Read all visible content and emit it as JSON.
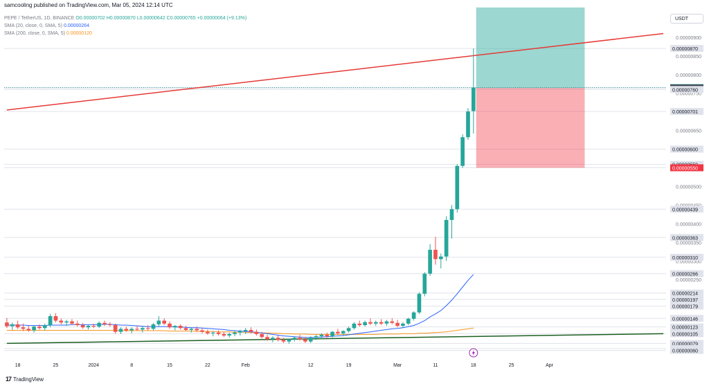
{
  "header": {
    "publish_line": "samcooling published on TradingView.com, Mar 05, 2024 12:14 UTC"
  },
  "legend": {
    "symbol": "PEPE / TetherUS, 1D, BINANCE",
    "ohlc": "O0.00000702 H0.00000870 L0.00000642 C0.00000765 +0.00000064 (+9.13%)",
    "sma20_label": "SMA (20, close, 0, SMA, 5)",
    "sma20_value": "0.00000264",
    "sma200_label": "SMA (200, close, 0, SMA, 5)",
    "sma200_value": "0.00000120"
  },
  "price_axis": {
    "currency_button": "USDT",
    "tick_labels": [
      "0.00000950",
      "0.00000900",
      "0.00000850",
      "0.00000800",
      "0.00000750",
      "0.00000700",
      "0.00000650",
      "0.00000600",
      "0.00000550",
      "0.00000500",
      "0.00000450",
      "0.00000400",
      "0.00000350",
      "0.00000300",
      "0.00000250"
    ],
    "markers": [
      {
        "value": "0.00000870",
        "style": "grey"
      },
      {
        "value": "0.00000765",
        "style": "green"
      },
      {
        "value": "0.00000764",
        "style": "dark"
      },
      {
        "value": "0.00000760",
        "style": "grey"
      },
      {
        "value": "0.00000701",
        "style": "grey"
      },
      {
        "value": "0.00000600",
        "style": "grey"
      },
      {
        "value": "0.00000559",
        "style": "grey"
      },
      {
        "value": "0.00000550",
        "style": "red"
      },
      {
        "value": "0.00000439",
        "style": "grey"
      },
      {
        "value": "0.00000363",
        "style": "grey"
      },
      {
        "value": "0.00000310",
        "style": "grey"
      },
      {
        "value": "0.00000266",
        "style": "grey"
      },
      {
        "value": "0.00000214",
        "style": "grey"
      },
      {
        "value": "0.00000197",
        "style": "grey"
      },
      {
        "value": "0.00000179",
        "style": "grey"
      },
      {
        "value": "0.00000146",
        "style": "grey"
      },
      {
        "value": "0.00000123",
        "style": "grey"
      },
      {
        "value": "0.00000105",
        "style": "grey"
      },
      {
        "value": "0.00000079",
        "style": "grey"
      },
      {
        "value": "0.00000065",
        "style": "grey"
      },
      {
        "value": "0.00000060",
        "style": "grey"
      }
    ]
  },
  "time_axis": {
    "labels": [
      "18",
      "25",
      "2024",
      "8",
      "15",
      "22",
      "Feb",
      "12",
      "19",
      "Mar",
      "11",
      "18",
      "25",
      "Apr"
    ]
  },
  "footer": {
    "brand": "TradingView"
  },
  "colors": {
    "up": "#26a69a",
    "down": "#ef5350",
    "sma20": "#2962ff",
    "sma200": "#f7931a",
    "trend_red": "#e53935",
    "trend_green": "#1b5e20",
    "profit_zone": "#26a69a",
    "loss_zone": "#f23645"
  },
  "chart_data": {
    "type": "candlestick",
    "symbol": "PEPE / TetherUS",
    "interval": "1D",
    "exchange": "BINANCE",
    "ylim": [
      5e-07,
      1e-05
    ],
    "candles": [
      [
        1.35e-06,
        1.47e-06,
        1.2e-06,
        1.25e-06
      ],
      [
        1.25e-06,
        1.35e-06,
        1.15e-06,
        1.3e-06
      ],
      [
        1.3e-06,
        1.4e-06,
        1.18e-06,
        1.22e-06
      ],
      [
        1.22e-06,
        1.32e-06,
        1.12e-06,
        1.18e-06
      ],
      [
        1.18e-06,
        1.26e-06,
        1.1e-06,
        1.14e-06
      ],
      [
        1.14e-06,
        1.28e-06,
        1.08e-06,
        1.24e-06
      ],
      [
        1.24e-06,
        1.3e-06,
        1.16e-06,
        1.2e-06
      ],
      [
        1.2e-06,
        1.32e-06,
        1.14e-06,
        1.28e-06
      ],
      [
        1.28e-06,
        1.58e-06,
        1.22e-06,
        1.52e-06
      ],
      [
        1.52e-06,
        1.6e-06,
        1.35e-06,
        1.4e-06
      ],
      [
        1.4e-06,
        1.46e-06,
        1.3e-06,
        1.35e-06
      ],
      [
        1.35e-06,
        1.42e-06,
        1.26e-06,
        1.38e-06
      ],
      [
        1.38e-06,
        1.44e-06,
        1.28e-06,
        1.32e-06
      ],
      [
        1.32e-06,
        1.4e-06,
        1.24e-06,
        1.28e-06
      ],
      [
        1.28e-06,
        1.34e-06,
        1.18e-06,
        1.22e-06
      ],
      [
        1.22e-06,
        1.3e-06,
        1.16e-06,
        1.26e-06
      ],
      [
        1.26e-06,
        1.32e-06,
        1.2e-06,
        1.24e-06
      ],
      [
        1.24e-06,
        1.38e-06,
        1.2e-06,
        1.34e-06
      ],
      [
        1.34e-06,
        1.4e-06,
        1.26e-06,
        1.3e-06
      ],
      [
        1.3e-06,
        1.36e-06,
        1.24e-06,
        1.28e-06
      ],
      [
        1.28e-06,
        1.32e-06,
        1.05e-06,
        1.1e-06
      ],
      [
        1.1e-06,
        1.22e-06,
        1.04e-06,
        1.18e-06
      ],
      [
        1.18e-06,
        1.24e-06,
        1.1e-06,
        1.14e-06
      ],
      [
        1.14e-06,
        1.22e-06,
        1.06e-06,
        1.18e-06
      ],
      [
        1.18e-06,
        1.26e-06,
        1.12e-06,
        1.16e-06
      ],
      [
        1.16e-06,
        1.24e-06,
        1.08e-06,
        1.2e-06
      ],
      [
        1.2e-06,
        1.28e-06,
        1.14e-06,
        1.18e-06
      ],
      [
        1.18e-06,
        1.34e-06,
        1.14e-06,
        1.3e-06
      ],
      [
        1.3e-06,
        1.52e-06,
        1.24e-06,
        1.4e-06
      ],
      [
        1.4e-06,
        1.46e-06,
        1.28e-06,
        1.32e-06
      ],
      [
        1.32e-06,
        1.38e-06,
        1.18e-06,
        1.22e-06
      ],
      [
        1.22e-06,
        1.28e-06,
        1.14e-06,
        1.26e-06
      ],
      [
        1.26e-06,
        1.3e-06,
        1.16e-06,
        1.2e-06
      ],
      [
        1.2e-06,
        1.26e-06,
        1.12e-06,
        1.15e-06
      ],
      [
        1.15e-06,
        1.22e-06,
        1.08e-06,
        1.18e-06
      ],
      [
        1.18e-06,
        1.24e-06,
        1.1e-06,
        1.14e-06
      ],
      [
        1.14e-06,
        1.2e-06,
        1.06e-06,
        1.1e-06
      ],
      [
        1.1e-06,
        1.16e-06,
        1.02e-06,
        1.06e-06
      ],
      [
        1.06e-06,
        1.12e-06,
        9.8e-07,
        1.08e-06
      ],
      [
        1.08e-06,
        1.14e-06,
        1e-06,
        1.04e-06
      ],
      [
        1.04e-06,
        1.1e-06,
        9.6e-07,
        1e-06
      ],
      [
        1e-06,
        1.08e-06,
        9.4e-07,
        1.04e-06
      ],
      [
        1.04e-06,
        1.12e-06,
        9.8e-07,
        1.08e-06
      ],
      [
        1.08e-06,
        1.16e-06,
        1e-06,
        1.12e-06
      ],
      [
        1.12e-06,
        1.2e-06,
        1.04e-06,
        1.15e-06
      ],
      [
        1.15e-06,
        1.22e-06,
        1.06e-06,
        1.1e-06
      ],
      [
        1.1e-06,
        1.16e-06,
        1e-06,
        1.04e-06
      ],
      [
        1.04e-06,
        1.1e-06,
        9.2e-07,
        9.6e-07
      ],
      [
        9.6e-07,
        1.02e-06,
        8.6e-07,
        9e-07
      ],
      [
        9e-07,
        9.8e-07,
        8.2e-07,
        9.4e-07
      ],
      [
        9.4e-07,
        1e-06,
        8.4e-07,
        8.8e-07
      ],
      [
        8.8e-07,
        9.4e-07,
        8e-07,
        8.4e-07
      ],
      [
        8.4e-07,
        9.2e-07,
        7.8e-07,
        9e-07
      ],
      [
        9e-07,
        9.8e-07,
        8.4e-07,
        9.4e-07
      ],
      [
        9.4e-07,
        1.02e-06,
        8.6e-07,
        9e-07
      ],
      [
        9e-07,
        9.6e-07,
        8e-07,
        8.4e-07
      ],
      [
        8.4e-07,
        9.8e-07,
        8e-07,
        9.4e-07
      ],
      [
        9.4e-07,
        1.02e-06,
        8.8e-07,
        9.8e-07
      ],
      [
        9.8e-07,
        1.06e-06,
        9e-07,
        1.02e-06
      ],
      [
        1.02e-06,
        1.08e-06,
        9.4e-07,
        9.8e-07
      ],
      [
        9.8e-07,
        1.12e-06,
        9.4e-07,
        1.1e-06
      ],
      [
        1.1e-06,
        1.18e-06,
        1.02e-06,
        1.06e-06
      ],
      [
        1.06e-06,
        1.14e-06,
        1e-06,
        1.12e-06
      ],
      [
        1.12e-06,
        1.24e-06,
        1.08e-06,
        1.2e-06
      ],
      [
        1.2e-06,
        1.36e-06,
        1.16e-06,
        1.32e-06
      ],
      [
        1.32e-06,
        1.4e-06,
        1.24e-06,
        1.28e-06
      ],
      [
        1.28e-06,
        1.4e-06,
        1.24e-06,
        1.36e-06
      ],
      [
        1.36e-06,
        1.46e-06,
        1.28e-06,
        1.32e-06
      ],
      [
        1.32e-06,
        1.4e-06,
        1.26e-06,
        1.36e-06
      ],
      [
        1.36e-06,
        1.44e-06,
        1.28e-06,
        1.32e-06
      ],
      [
        1.32e-06,
        1.42e-06,
        1.26e-06,
        1.38e-06
      ],
      [
        1.38e-06,
        1.46e-06,
        1.3e-06,
        1.34e-06
      ],
      [
        1.34e-06,
        1.42e-06,
        1.22e-06,
        1.26e-06
      ],
      [
        1.26e-06,
        1.36e-06,
        1.2e-06,
        1.32e-06
      ],
      [
        1.32e-06,
        1.48e-06,
        1.28e-06,
        1.45e-06
      ],
      [
        1.45e-06,
        1.65e-06,
        1.4e-06,
        1.62e-06
      ],
      [
        1.62e-06,
        2.16e-06,
        1.58e-06,
        2.12e-06
      ],
      [
        2.12e-06,
        2.7e-06,
        2.05e-06,
        2.66e-06
      ],
      [
        2.66e-06,
        3.45e-06,
        2.6e-06,
        3.3e-06
      ],
      [
        3.3e-06,
        3.65e-06,
        2.9e-06,
        3.05e-06
      ],
      [
        3.05e-06,
        3.2e-06,
        2.8e-06,
        3.12e-06
      ],
      [
        3.12e-06,
        4.2e-06,
        3e-06,
        4.1e-06
      ],
      [
        4.1e-06,
        4.5e-06,
        3.6e-06,
        4.39e-06
      ],
      [
        4.39e-06,
        5.6e-06,
        4.3e-06,
        5.55e-06
      ],
      [
        5.55e-06,
        6.4e-06,
        5.5e-06,
        6.32e-06
      ],
      [
        6.32e-06,
        7.1e-06,
        6.25e-06,
        7.01e-06
      ],
      [
        7.02e-06,
        8.7e-06,
        6.42e-06,
        7.65e-06
      ]
    ],
    "sma20": [
      1.28e-06,
      1.28e-06,
      1.28e-06,
      1.28e-06,
      1.27e-06,
      1.27e-06,
      1.27e-06,
      1.27e-06,
      1.28e-06,
      1.28e-06,
      1.28e-06,
      1.28e-06,
      1.29e-06,
      1.29e-06,
      1.29e-06,
      1.29e-06,
      1.29e-06,
      1.29e-06,
      1.3e-06,
      1.3e-06,
      1.29e-06,
      1.28e-06,
      1.28e-06,
      1.27e-06,
      1.26e-06,
      1.25e-06,
      1.24e-06,
      1.24e-06,
      1.24e-06,
      1.24e-06,
      1.24e-06,
      1.23e-06,
      1.23e-06,
      1.22e-06,
      1.21e-06,
      1.21e-06,
      1.2e-06,
      1.19e-06,
      1.18e-06,
      1.17e-06,
      1.16e-06,
      1.14e-06,
      1.13e-06,
      1.12e-06,
      1.11e-06,
      1.1e-06,
      1.09e-06,
      1.07e-06,
      1.05e-06,
      1.03e-06,
      1.01e-06,
      9.9e-07,
      9.8e-07,
      9.7e-07,
      9.6e-07,
      9.5e-07,
      9.5e-07,
      9.5e-07,
      9.6e-07,
      9.7e-07,
      9.8e-07,
      9.9e-07,
      1e-06,
      1.02e-06,
      1.04e-06,
      1.06e-06,
      1.08e-06,
      1.1e-06,
      1.12e-06,
      1.14e-06,
      1.16e-06,
      1.18e-06,
      1.19e-06,
      1.21e-06,
      1.24e-06,
      1.27e-06,
      1.33e-06,
      1.4e-06,
      1.5e-06,
      1.58e-06,
      1.67e-06,
      1.8e-06,
      1.95e-06,
      2.12e-06,
      2.3e-06,
      2.48e-06,
      2.64e-06
    ],
    "sma200": [
      1.14e-06,
      1.14e-06,
      1.14e-06,
      1.14e-06,
      1.14e-06,
      1.14e-06,
      1.14e-06,
      1.14e-06,
      1.14e-06,
      1.14e-06,
      1.14e-06,
      1.14e-06,
      1.14e-06,
      1.14e-06,
      1.14e-06,
      1.14e-06,
      1.14e-06,
      1.14e-06,
      1.14e-06,
      1.14e-06,
      1.14e-06,
      1.13e-06,
      1.13e-06,
      1.13e-06,
      1.13e-06,
      1.13e-06,
      1.13e-06,
      1.13e-06,
      1.13e-06,
      1.13e-06,
      1.12e-06,
      1.12e-06,
      1.12e-06,
      1.12e-06,
      1.12e-06,
      1.11e-06,
      1.11e-06,
      1.11e-06,
      1.11e-06,
      1.1e-06,
      1.1e-06,
      1.1e-06,
      1.09e-06,
      1.09e-06,
      1.09e-06,
      1.08e-06,
      1.08e-06,
      1.07e-06,
      1.07e-06,
      1.06e-06,
      1.06e-06,
      1.05e-06,
      1.05e-06,
      1.04e-06,
      1.04e-06,
      1.04e-06,
      1.03e-06,
      1.03e-06,
      1.03e-06,
      1.03e-06,
      1.03e-06,
      1.03e-06,
      1.03e-06,
      1.03e-06,
      1.03e-06,
      1.03e-06,
      1.03e-06,
      1.03e-06,
      1.03e-06,
      1.04e-06,
      1.04e-06,
      1.04e-06,
      1.04e-06,
      1.05e-06,
      1.05e-06,
      1.05e-06,
      1.06e-06,
      1.06e-06,
      1.07e-06,
      1.08e-06,
      1.09e-06,
      1.1e-06,
      1.12e-06,
      1.14e-06,
      1.16e-06,
      1.18e-06,
      1.2e-06
    ],
    "trendlines": [
      {
        "name": "resistance",
        "color": "#e53935",
        "from_index": 0,
        "from_price": 7.05e-06,
        "to_index": 121,
        "to_price": 9.1e-06
      },
      {
        "name": "support",
        "color": "#1b5e20",
        "from_index": 0,
        "from_price": 7.9e-07,
        "to_index": 121,
        "to_price": 1.05e-06
      }
    ],
    "position": {
      "entry": 7.64e-06,
      "target": 9.8e-06,
      "stop": 5.5e-06,
      "from_index": 87,
      "to_index": 106
    }
  }
}
